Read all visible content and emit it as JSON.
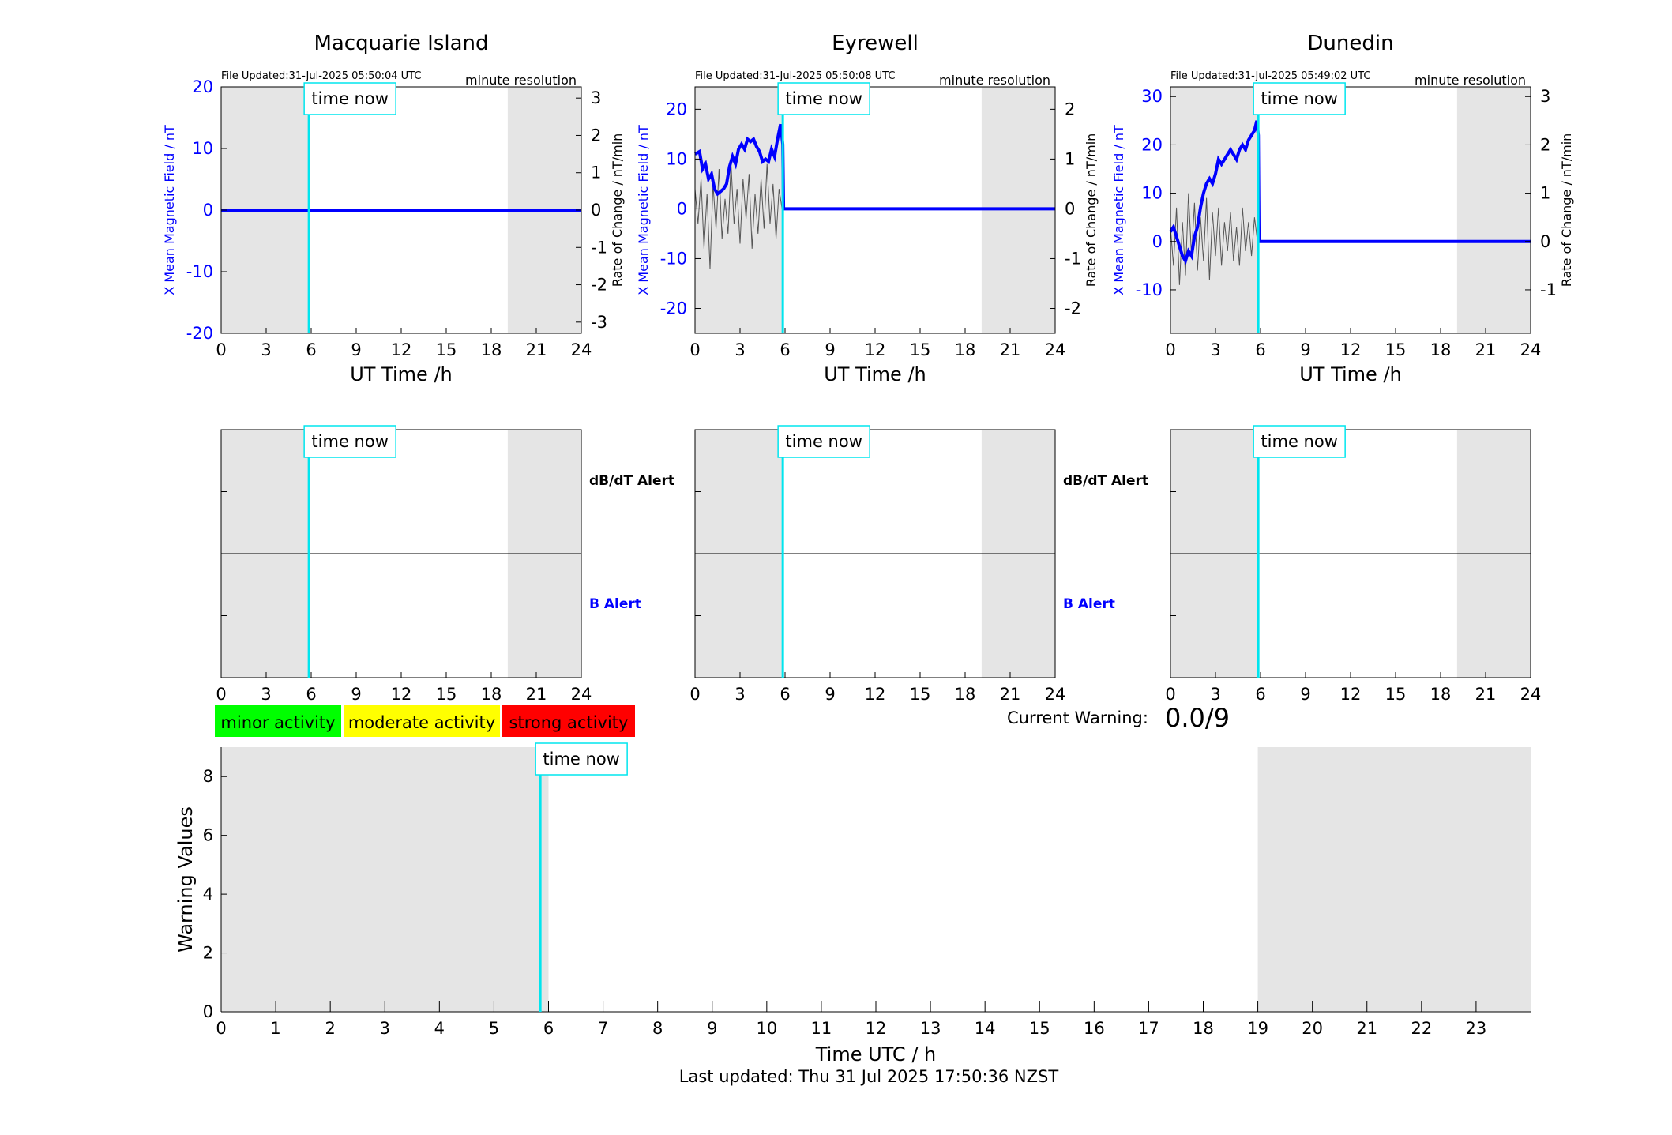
{
  "footer": "Last updated: Thu 31 Jul 2025 17:50:36 NZST",
  "time_now_label": "time now",
  "resolution_label": "minute resolution",
  "alert_labels": {
    "dbdt": "dB/dT Alert",
    "b": "B Alert"
  },
  "legend": [
    {
      "label": "minor activity",
      "color": "#00ff00"
    },
    {
      "label": "moderate activity",
      "color": "#ffff00"
    },
    {
      "label": "strong activity",
      "color": "#ff0000"
    }
  ],
  "current_warning": {
    "label": "Current Warning:",
    "value": "0.0/9"
  },
  "colors": {
    "shade": "#e5e5e5",
    "time_now": "#00e5ee",
    "field": "#0000ff",
    "rate": "#555555",
    "axis": "#000000"
  },
  "chart_data": [
    {
      "type": "line",
      "title": "Macquarie Island",
      "file_updated": "File Updated:31-Jul-2025 05:50:04 UTC",
      "xlabel": "UT Time /h",
      "ylabel_left": "X Mean Magnetic Field / nT",
      "ylabel_right": "Rate of Change / nT/min",
      "xlim": [
        0,
        24
      ],
      "xticks": [
        0,
        3,
        6,
        9,
        12,
        15,
        18,
        21,
        24
      ],
      "ylim_left": [
        -20,
        20
      ],
      "yticks_left": [
        -20,
        -10,
        0,
        10,
        20
      ],
      "ylim_right": [
        -3.3,
        3.3
      ],
      "yticks_right": [
        -3,
        -2,
        -1,
        0,
        1,
        2,
        3
      ],
      "shaded_ranges": [
        [
          0,
          5.85
        ],
        [
          19.1,
          24
        ]
      ],
      "time_now": 5.85,
      "series": [
        {
          "values": [
            [
              0,
              0
            ],
            [
              24,
              0
            ]
          ]
        }
      ],
      "rate_series": []
    },
    {
      "type": "line",
      "title": "Eyrewell",
      "file_updated": "File Updated:31-Jul-2025 05:50:08 UTC",
      "xlabel": "UT Time /h",
      "ylabel_left": "X Mean Magnetic Field / nT",
      "ylabel_right": "Rate of Change / nT/min",
      "xlim": [
        0,
        24
      ],
      "xticks": [
        0,
        3,
        6,
        9,
        12,
        15,
        18,
        21,
        24
      ],
      "ylim_left": [
        -25,
        24.5
      ],
      "yticks_left": [
        -20,
        -10,
        0,
        10,
        20
      ],
      "ylim_right": [
        -2.5,
        2.45
      ],
      "yticks_right": [
        -2,
        -1,
        0,
        1,
        2
      ],
      "shaded_ranges": [
        [
          0,
          5.85
        ],
        [
          19.1,
          24
        ]
      ],
      "time_now": 5.85,
      "series": [
        {
          "values": [
            [
              0,
              11
            ],
            [
              0.3,
              11.5
            ],
            [
              0.5,
              8
            ],
            [
              0.7,
              9
            ],
            [
              0.9,
              6
            ],
            [
              1.1,
              7
            ],
            [
              1.3,
              4
            ],
            [
              1.5,
              3
            ],
            [
              1.7,
              3.5
            ],
            [
              1.9,
              4
            ],
            [
              2.1,
              5
            ],
            [
              2.3,
              8.5
            ],
            [
              2.5,
              10.5
            ],
            [
              2.7,
              9
            ],
            [
              2.9,
              12
            ],
            [
              3.1,
              13
            ],
            [
              3.3,
              12
            ],
            [
              3.5,
              14
            ],
            [
              3.7,
              13.5
            ],
            [
              3.9,
              14
            ],
            [
              4.1,
              12.5
            ],
            [
              4.3,
              11.5
            ],
            [
              4.5,
              9.5
            ],
            [
              4.7,
              10
            ],
            [
              4.9,
              9.5
            ],
            [
              5.1,
              12
            ],
            [
              5.3,
              10.5
            ],
            [
              5.5,
              14
            ],
            [
              5.7,
              17
            ],
            [
              5.85,
              13
            ],
            [
              5.9,
              0
            ],
            [
              24,
              0
            ]
          ]
        }
      ],
      "rate_series": [
        {
          "values": [
            [
              0,
              0.4
            ],
            [
              0.2,
              -0.3
            ],
            [
              0.4,
              0.6
            ],
            [
              0.6,
              -0.8
            ],
            [
              0.8,
              0.3
            ],
            [
              1.0,
              -1.2
            ],
            [
              1.2,
              0.5
            ],
            [
              1.4,
              -0.4
            ],
            [
              1.6,
              0.8
            ],
            [
              1.8,
              -0.6
            ],
            [
              2.0,
              0.2
            ],
            [
              2.2,
              -0.5
            ],
            [
              2.4,
              0.9
            ],
            [
              2.6,
              -0.3
            ],
            [
              2.8,
              0.4
            ],
            [
              3.0,
              -0.7
            ],
            [
              3.2,
              0.6
            ],
            [
              3.4,
              -0.2
            ],
            [
              3.6,
              0.7
            ],
            [
              3.8,
              -0.8
            ],
            [
              4.0,
              0.3
            ],
            [
              4.2,
              -0.5
            ],
            [
              4.4,
              0.6
            ],
            [
              4.6,
              -0.4
            ],
            [
              4.8,
              0.9
            ],
            [
              5.0,
              -0.3
            ],
            [
              5.2,
              0.5
            ],
            [
              5.4,
              -0.6
            ],
            [
              5.6,
              0.4
            ],
            [
              5.8,
              0
            ]
          ]
        }
      ]
    },
    {
      "type": "line",
      "title": "Dunedin",
      "file_updated": "File Updated:31-Jul-2025 05:49:02 UTC",
      "xlabel": "UT Time /h",
      "ylabel_left": "X Mean Magnetic Field / nT",
      "ylabel_right": "Rate of Change / nT/min",
      "xlim": [
        0,
        24
      ],
      "xticks": [
        0,
        3,
        6,
        9,
        12,
        15,
        18,
        21,
        24
      ],
      "ylim_left": [
        -19,
        32
      ],
      "yticks_left": [
        -10,
        0,
        10,
        20,
        30
      ],
      "ylim_right": [
        -1.9,
        3.2
      ],
      "yticks_right": [
        -1,
        0,
        1,
        2,
        3
      ],
      "shaded_ranges": [
        [
          0,
          5.85
        ],
        [
          19.1,
          24
        ]
      ],
      "time_now": 5.85,
      "series": [
        {
          "values": [
            [
              0,
              2
            ],
            [
              0.2,
              3
            ],
            [
              0.4,
              1
            ],
            [
              0.6,
              -1
            ],
            [
              0.8,
              -3
            ],
            [
              1.0,
              -4
            ],
            [
              1.2,
              -2
            ],
            [
              1.4,
              -3
            ],
            [
              1.6,
              1
            ],
            [
              1.8,
              3
            ],
            [
              2.0,
              7
            ],
            [
              2.2,
              10
            ],
            [
              2.4,
              12
            ],
            [
              2.6,
              13
            ],
            [
              2.8,
              12
            ],
            [
              3.0,
              14
            ],
            [
              3.2,
              17
            ],
            [
              3.4,
              16
            ],
            [
              3.6,
              17
            ],
            [
              3.8,
              18
            ],
            [
              4.0,
              19
            ],
            [
              4.2,
              18
            ],
            [
              4.4,
              17
            ],
            [
              4.6,
              19
            ],
            [
              4.8,
              20
            ],
            [
              5.0,
              19
            ],
            [
              5.2,
              21
            ],
            [
              5.4,
              22
            ],
            [
              5.6,
              23
            ],
            [
              5.75,
              25
            ],
            [
              5.85,
              22
            ],
            [
              5.9,
              0
            ],
            [
              24,
              0
            ]
          ]
        }
      ],
      "rate_series": [
        {
          "values": [
            [
              0,
              0.3
            ],
            [
              0.2,
              -0.5
            ],
            [
              0.4,
              0.7
            ],
            [
              0.6,
              -0.9
            ],
            [
              0.8,
              0.4
            ],
            [
              1.0,
              -0.7
            ],
            [
              1.2,
              1.0
            ],
            [
              1.4,
              -0.3
            ],
            [
              1.6,
              0.8
            ],
            [
              1.8,
              -0.6
            ],
            [
              2.0,
              0.5
            ],
            [
              2.2,
              -0.4
            ],
            [
              2.4,
              0.9
            ],
            [
              2.6,
              -0.8
            ],
            [
              2.8,
              0.6
            ],
            [
              3.0,
              -0.3
            ],
            [
              3.2,
              0.7
            ],
            [
              3.4,
              -0.5
            ],
            [
              3.6,
              0.4
            ],
            [
              3.8,
              -0.2
            ],
            [
              4.0,
              0.6
            ],
            [
              4.2,
              -0.4
            ],
            [
              4.4,
              0.3
            ],
            [
              4.6,
              -0.5
            ],
            [
              4.8,
              0.7
            ],
            [
              5.0,
              -0.2
            ],
            [
              5.2,
              0.4
            ],
            [
              5.4,
              -0.3
            ],
            [
              5.6,
              0.5
            ],
            [
              5.8,
              0
            ]
          ]
        }
      ]
    },
    {
      "type": "alert",
      "xlim": [
        0,
        24
      ],
      "xticks": [
        0,
        3,
        6,
        9,
        12,
        15,
        18,
        21,
        24
      ],
      "shaded_ranges": [
        [
          0,
          5.85
        ],
        [
          19.1,
          24
        ]
      ],
      "time_now": 5.85
    },
    {
      "type": "alert",
      "xlim": [
        0,
        24
      ],
      "xticks": [
        0,
        3,
        6,
        9,
        12,
        15,
        18,
        21,
        24
      ],
      "shaded_ranges": [
        [
          0,
          5.85
        ],
        [
          19.1,
          24
        ]
      ],
      "time_now": 5.85
    },
    {
      "type": "alert",
      "xlim": [
        0,
        24
      ],
      "xticks": [
        0,
        3,
        6,
        9,
        12,
        15,
        18,
        21,
        24
      ],
      "shaded_ranges": [
        [
          0,
          5.85
        ],
        [
          19.1,
          24
        ]
      ],
      "time_now": 5.85
    },
    {
      "type": "bar",
      "xlabel": "Time UTC / h",
      "ylabel": "Warning Values",
      "xlim": [
        0,
        24
      ],
      "xticks": [
        0,
        1,
        2,
        3,
        4,
        5,
        6,
        7,
        8,
        9,
        10,
        11,
        12,
        13,
        14,
        15,
        16,
        17,
        18,
        19,
        20,
        21,
        22,
        23
      ],
      "ylim": [
        0,
        9
      ],
      "yticks": [
        0,
        2,
        4,
        6,
        8
      ],
      "shaded_ranges": [
        [
          0,
          6
        ],
        [
          19,
          24
        ]
      ],
      "time_now": 5.85,
      "values": []
    }
  ]
}
